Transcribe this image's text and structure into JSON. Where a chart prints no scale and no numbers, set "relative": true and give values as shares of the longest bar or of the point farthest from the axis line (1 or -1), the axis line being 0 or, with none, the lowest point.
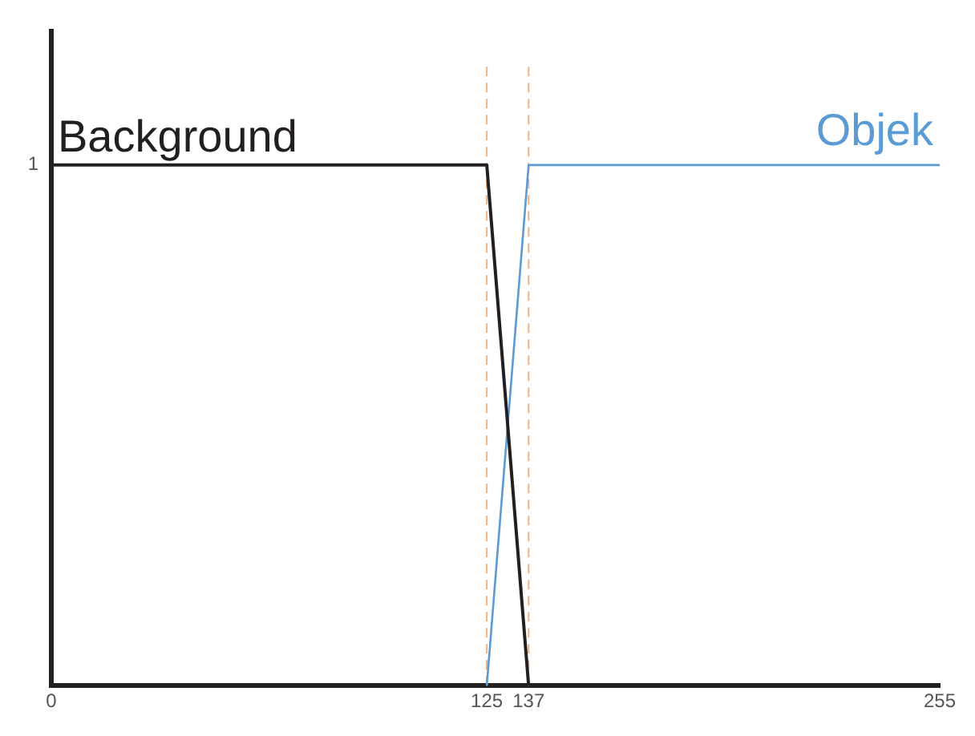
{
  "chart_data": {
    "type": "line",
    "relative": true,
    "series": [
      {
        "name": "Background",
        "color": "#231f20",
        "values": [
          1,
          1,
          0
        ],
        "x": [
          0,
          125,
          137
        ]
      },
      {
        "name": "Objek",
        "color": "#5b9bd5",
        "values": [
          0,
          1,
          1
        ],
        "x": [
          125,
          137,
          255
        ]
      }
    ],
    "xlim": [
      0,
      255
    ],
    "xticks": [
      0,
      125,
      137,
      255
    ],
    "annotations": [
      "1"
    ],
    "ref_lines": [
      {
        "axis": "x",
        "value": 125,
        "color": "#f4b183",
        "line_style": "dashed"
      },
      {
        "axis": "x",
        "value": 137,
        "color": "#f4b183",
        "line_style": "dashed"
      }
    ],
    "grid": false,
    "legend": false,
    "marker": "none",
    "line_style": "solid"
  }
}
